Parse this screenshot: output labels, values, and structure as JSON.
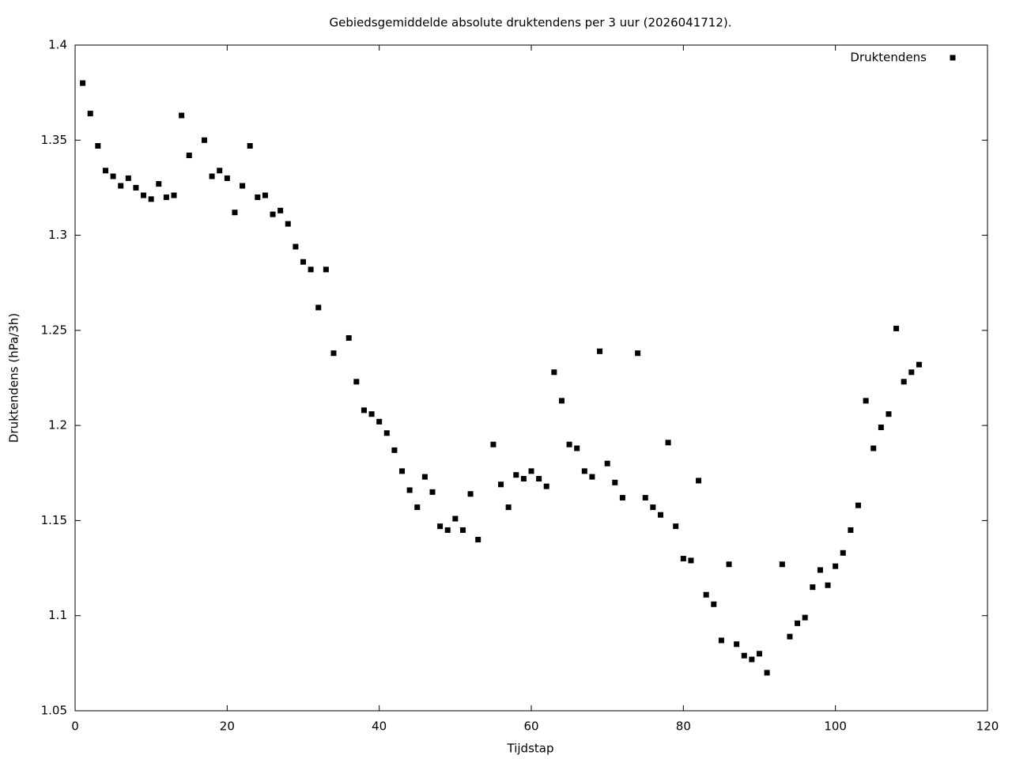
{
  "chart_data": {
    "type": "scatter",
    "title": "Gebiedsgemiddelde absolute druktendens per 3 uur (2026041712).",
    "x_label": "Tijdstap",
    "y_label": "Druktendens (hPa/3h)",
    "xlim": [
      0,
      120
    ],
    "xticks": [
      0,
      20,
      40,
      60,
      80,
      100,
      120
    ],
    "ylim": [
      1.05,
      1.4
    ],
    "yticks": [
      1.05,
      1.1,
      1.15,
      1.2,
      1.25,
      1.3,
      1.35,
      1.4
    ],
    "legend_position": "upper right",
    "series": [
      {
        "name": "Druktendens",
        "color": "#000000",
        "x": [
          1,
          2,
          3,
          4,
          5,
          6,
          7,
          8,
          9,
          10,
          11,
          12,
          13,
          14,
          15,
          17,
          18,
          19,
          20,
          21,
          22,
          23,
          24,
          25,
          26,
          27,
          28,
          29,
          30,
          31,
          32,
          33,
          34,
          36,
          37,
          38,
          39,
          40,
          41,
          42,
          43,
          44,
          45,
          46,
          47,
          48,
          49,
          50,
          51,
          52,
          53,
          55,
          56,
          57,
          58,
          59,
          60,
          61,
          62,
          63,
          64,
          65,
          66,
          67,
          68,
          69,
          70,
          71,
          72,
          74,
          75,
          76,
          77,
          78,
          79,
          80,
          81,
          82,
          83,
          84,
          85,
          86,
          87,
          88,
          89,
          90,
          91,
          93,
          94,
          95,
          96,
          97,
          98,
          99,
          100,
          101,
          102,
          103,
          104,
          105,
          106,
          107,
          108,
          109,
          110,
          111
        ],
        "values": [
          1.38,
          1.364,
          1.347,
          1.334,
          1.331,
          1.326,
          1.33,
          1.325,
          1.321,
          1.319,
          1.327,
          1.32,
          1.321,
          1.363,
          1.342,
          1.35,
          1.331,
          1.334,
          1.33,
          1.312,
          1.326,
          1.347,
          1.32,
          1.321,
          1.311,
          1.313,
          1.306,
          1.294,
          1.286,
          1.282,
          1.262,
          1.282,
          1.238,
          1.246,
          1.223,
          1.208,
          1.206,
          1.202,
          1.196,
          1.187,
          1.176,
          1.166,
          1.157,
          1.173,
          1.165,
          1.147,
          1.145,
          1.151,
          1.145,
          1.164,
          1.14,
          1.19,
          1.169,
          1.157,
          1.174,
          1.172,
          1.176,
          1.172,
          1.168,
          1.228,
          1.213,
          1.19,
          1.188,
          1.176,
          1.173,
          1.239,
          1.18,
          1.17,
          1.162,
          1.238,
          1.162,
          1.157,
          1.153,
          1.191,
          1.147,
          1.13,
          1.129,
          1.171,
          1.111,
          1.106,
          1.087,
          1.127,
          1.085,
          1.079,
          1.077,
          1.08,
          1.07,
          1.127,
          1.089,
          1.096,
          1.099,
          1.115,
          1.124,
          1.116,
          1.126,
          1.133,
          1.145,
          1.158,
          1.213,
          1.188,
          1.199,
          1.206,
          1.251,
          1.223,
          1.228,
          1.232
        ]
      }
    ]
  }
}
